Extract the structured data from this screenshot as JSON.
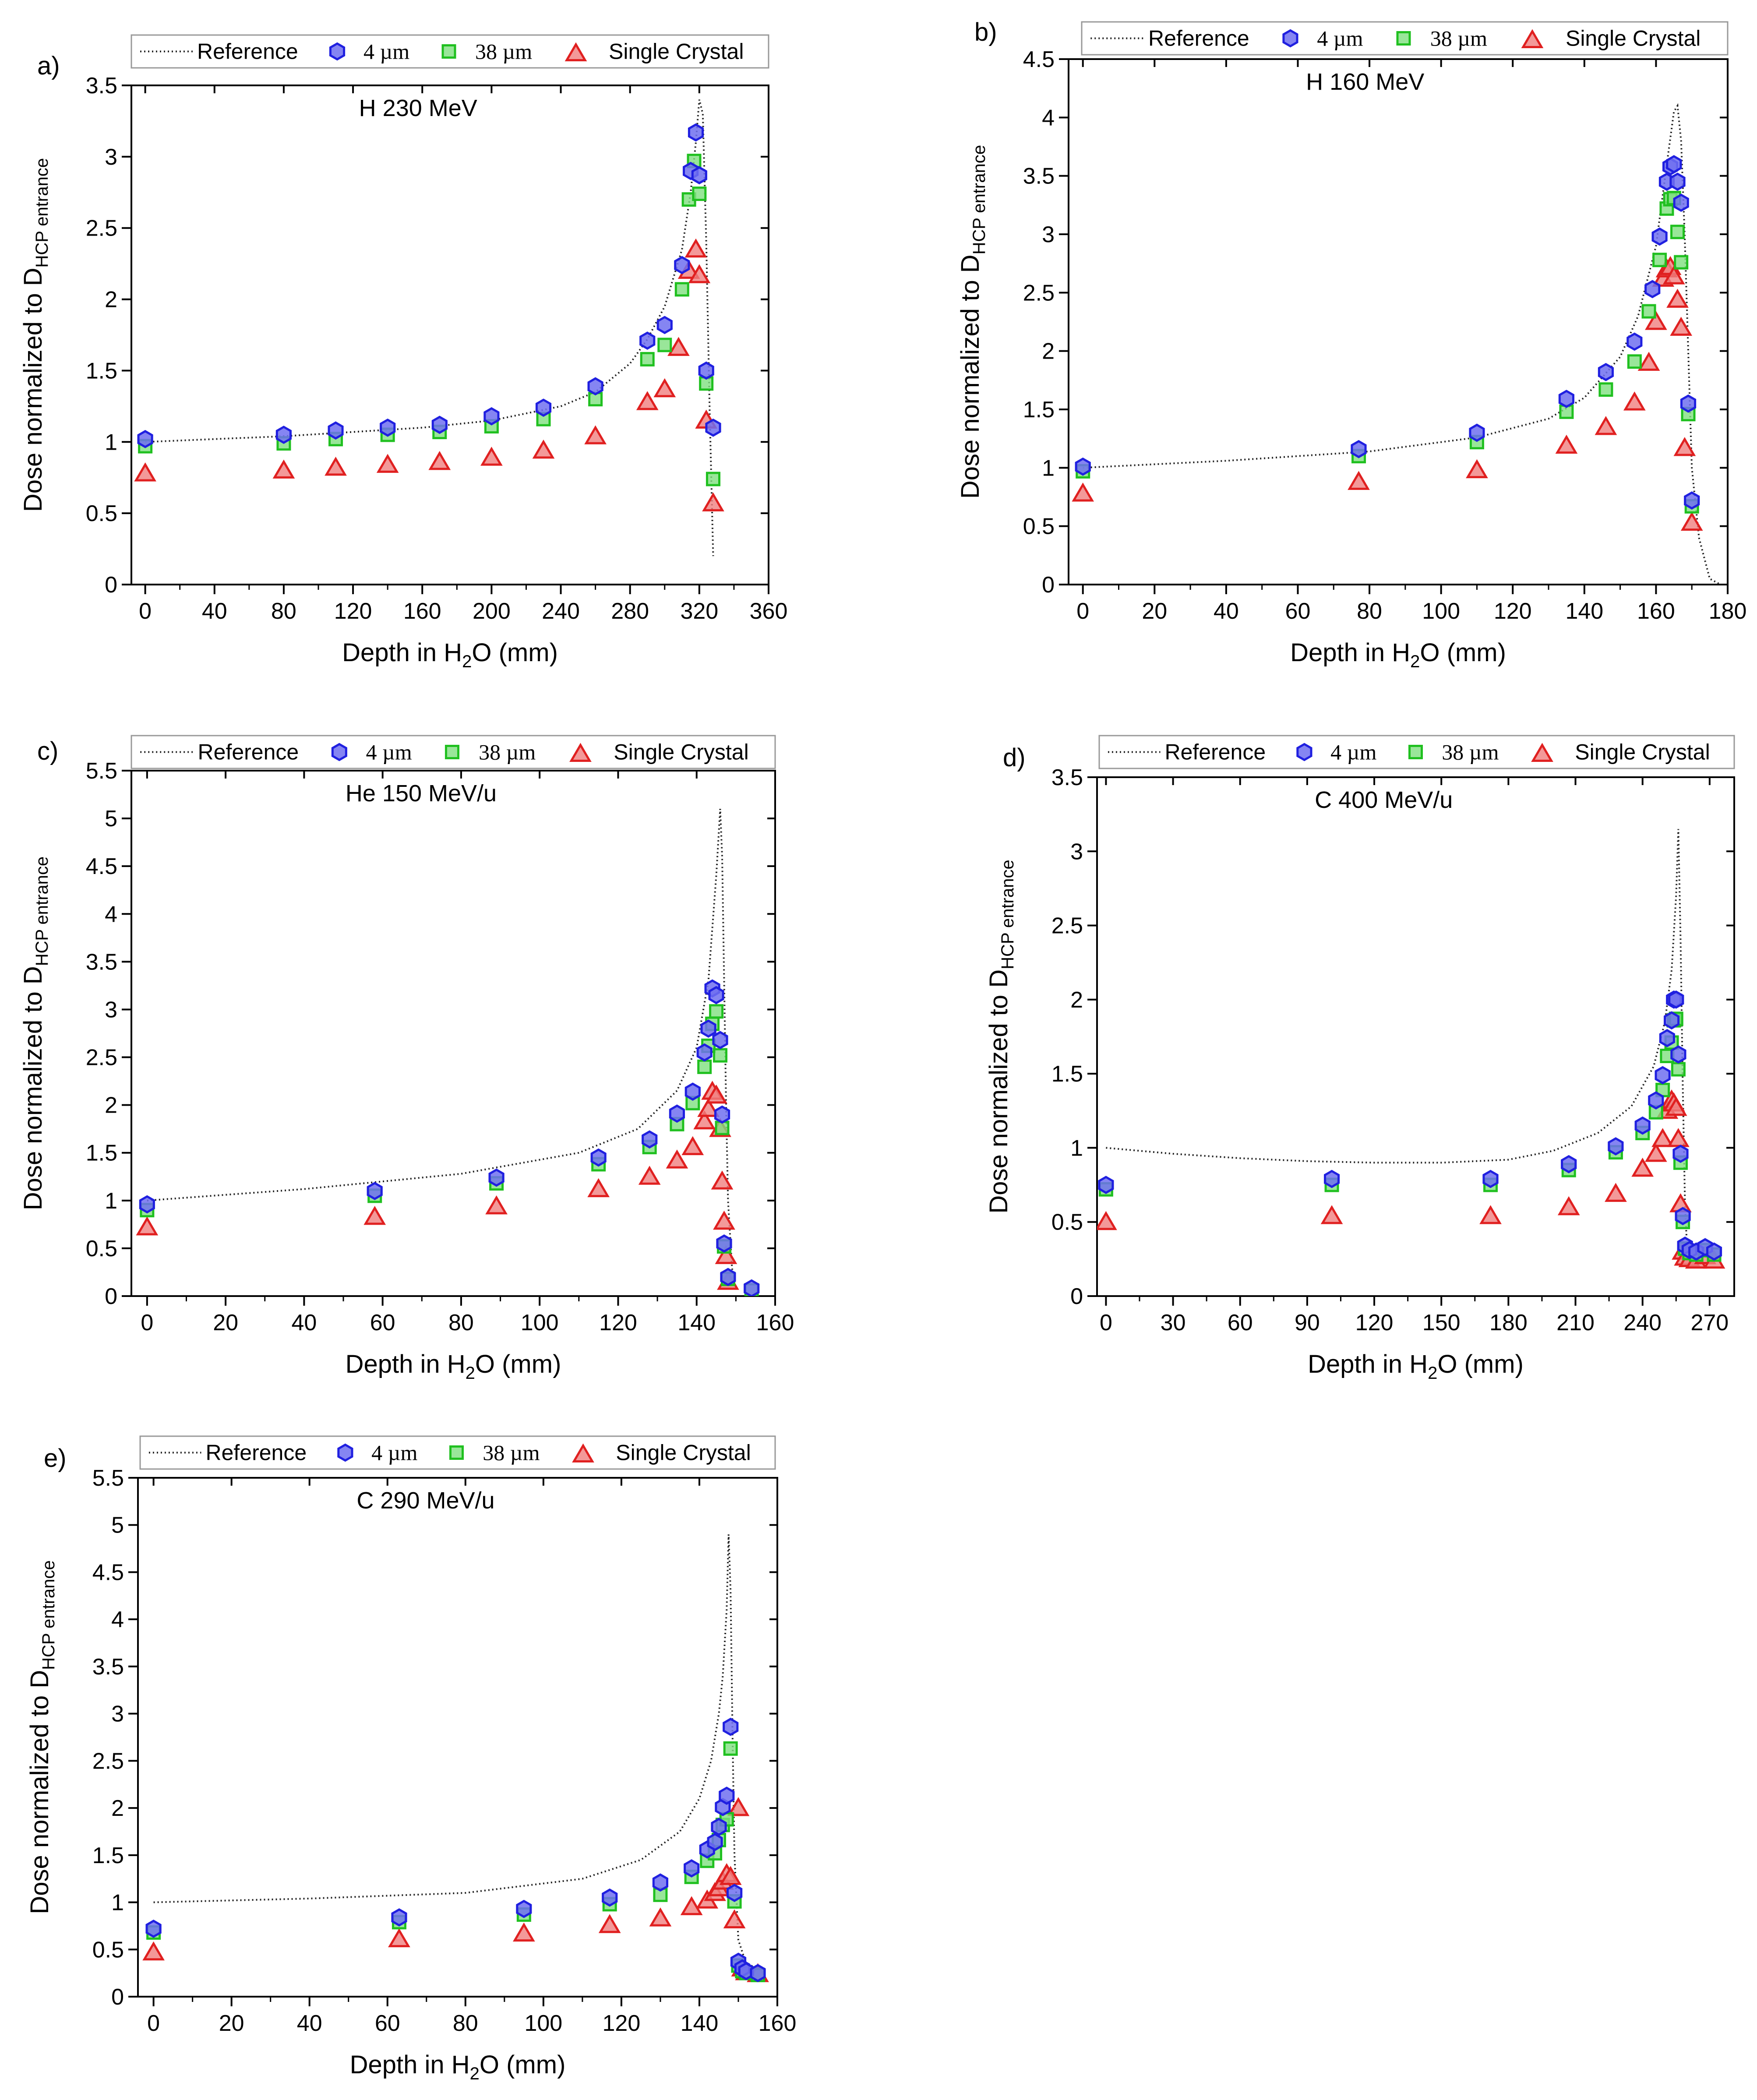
{
  "legend": {
    "reference": "Reference",
    "d4": "4 µm",
    "d38": "38 µm",
    "single": "Single Crystal"
  },
  "colors": {
    "reference": "#222222",
    "blue_fill": "#7070f0",
    "blue_edge": "#2020e0",
    "green_fill": "#80e080",
    "green_edge": "#20c020",
    "red_fill": "#f08080",
    "red_edge": "#e02020"
  },
  "chart_data": [
    {
      "type": "scatter",
      "panel": "a)",
      "title": "H 230 MeV",
      "xlabel": "Depth in H2O (mm)",
      "ylabel": "Dose normalized to DHCP entrance",
      "xlim": [
        -8,
        360
      ],
      "ylim": [
        0,
        3.5
      ],
      "xticks": [
        0,
        40,
        80,
        120,
        160,
        200,
        240,
        280,
        320,
        360
      ],
      "yticks": [
        0,
        0.5,
        1,
        1.5,
        2,
        2.5,
        3,
        3.5
      ],
      "reference": {
        "x": [
          0,
          40,
          80,
          120,
          160,
          200,
          240,
          260,
          280,
          290,
          300,
          310,
          315,
          318,
          320,
          322,
          324,
          326,
          328
        ],
        "y": [
          1.0,
          1.02,
          1.04,
          1.07,
          1.1,
          1.15,
          1.25,
          1.35,
          1.55,
          1.72,
          1.95,
          2.35,
          2.75,
          3.1,
          3.4,
          3.3,
          2.4,
          1.2,
          0.2
        ]
      },
      "series": [
        {
          "name": "4 µm",
          "x": [
            0,
            80,
            110,
            140,
            170,
            200,
            230,
            260,
            290,
            300,
            310,
            315,
            318,
            320,
            324,
            328
          ],
          "y": [
            1.02,
            1.05,
            1.08,
            1.1,
            1.12,
            1.18,
            1.24,
            1.39,
            1.71,
            1.82,
            2.24,
            2.9,
            3.17,
            2.87,
            1.5,
            1.1
          ]
        },
        {
          "name": "38 µm",
          "x": [
            0,
            80,
            110,
            140,
            170,
            200,
            230,
            260,
            290,
            300,
            310,
            314,
            317,
            320,
            324,
            328
          ],
          "y": [
            0.97,
            0.99,
            1.02,
            1.05,
            1.07,
            1.11,
            1.16,
            1.3,
            1.58,
            1.68,
            2.07,
            2.7,
            2.97,
            2.74,
            1.41,
            0.74
          ]
        },
        {
          "name": "Single Crystal",
          "x": [
            0,
            80,
            110,
            140,
            170,
            200,
            230,
            260,
            290,
            300,
            308,
            314,
            318,
            320,
            324,
            328
          ],
          "y": [
            0.78,
            0.8,
            0.82,
            0.84,
            0.86,
            0.89,
            0.94,
            1.04,
            1.28,
            1.37,
            1.66,
            2.2,
            2.35,
            2.17,
            1.15,
            0.57
          ]
        }
      ]
    },
    {
      "type": "scatter",
      "panel": "b)",
      "title": "H 160 MeV",
      "xlabel": "Depth in H2O (mm)",
      "ylabel": "Dose normalized to DHCP entrance",
      "xlim": [
        -4,
        180
      ],
      "ylim": [
        0,
        4.5
      ],
      "xticks": [
        0,
        20,
        40,
        60,
        80,
        100,
        120,
        140,
        160,
        180
      ],
      "yticks": [
        0,
        0.5,
        1,
        1.5,
        2,
        2.5,
        3,
        3.5,
        4,
        4.5
      ],
      "reference": {
        "x": [
          0,
          40,
          80,
          110,
          130,
          140,
          150,
          155,
          160,
          163,
          165,
          166,
          167,
          168,
          169,
          170,
          172,
          175,
          178
        ],
        "y": [
          1.0,
          1.06,
          1.14,
          1.26,
          1.42,
          1.6,
          1.95,
          2.3,
          2.9,
          3.6,
          4.05,
          4.1,
          3.8,
          3.0,
          2.0,
          1.0,
          0.4,
          0.05,
          0.0
        ]
      },
      "series": [
        {
          "name": "4 µm",
          "x": [
            0,
            77,
            110,
            135,
            146,
            154,
            159,
            161,
            163,
            164,
            165,
            166,
            167,
            169,
            170
          ],
          "y": [
            1.01,
            1.16,
            1.3,
            1.59,
            1.82,
            2.08,
            2.53,
            2.98,
            3.45,
            3.58,
            3.6,
            3.45,
            3.27,
            1.55,
            0.72
          ]
        },
        {
          "name": "38 µm",
          "x": [
            0,
            77,
            110,
            135,
            146,
            154,
            158,
            161,
            163,
            164,
            165,
            166,
            167,
            169,
            170
          ],
          "y": [
            0.97,
            1.1,
            1.22,
            1.48,
            1.67,
            1.91,
            2.34,
            2.78,
            3.22,
            3.3,
            3.31,
            3.02,
            2.76,
            1.46,
            0.67
          ]
        },
        {
          "name": "Single Crystal",
          "x": [
            0,
            77,
            110,
            135,
            146,
            154,
            158,
            160,
            162,
            163,
            164,
            165,
            166,
            167,
            168,
            170
          ],
          "y": [
            0.78,
            0.88,
            0.98,
            1.19,
            1.35,
            1.56,
            1.9,
            2.25,
            2.62,
            2.7,
            2.72,
            2.64,
            2.44,
            2.2,
            1.17,
            0.53
          ]
        }
      ]
    },
    {
      "type": "scatter",
      "panel": "c)",
      "title": "He 150 MeV/u",
      "xlabel": "Depth in H2O (mm)",
      "ylabel": "Dose normalized to DHCP entrance",
      "xlim": [
        -4,
        160
      ],
      "ylim": [
        0,
        5.5
      ],
      "xticks": [
        0,
        20,
        40,
        60,
        80,
        100,
        120,
        140,
        160
      ],
      "yticks": [
        0,
        0.5,
        1,
        1.5,
        2,
        2.5,
        3,
        3.5,
        4,
        4.5,
        5,
        5.5
      ],
      "reference": {
        "x": [
          0,
          40,
          80,
          110,
          125,
          135,
          140,
          143,
          145,
          146,
          146.5,
          147,
          147.5,
          148,
          149,
          150
        ],
        "y": [
          1.0,
          1.12,
          1.28,
          1.5,
          1.75,
          2.15,
          2.6,
          3.3,
          4.4,
          5.1,
          4.6,
          3.3,
          2.0,
          1.0,
          0.3,
          0.05
        ]
      },
      "series": [
        {
          "name": "4 µm",
          "x": [
            0,
            58,
            89,
            115,
            128,
            135,
            139,
            142,
            143,
            144,
            145,
            146,
            146.5,
            147,
            148,
            154
          ],
          "y": [
            0.96,
            1.1,
            1.24,
            1.45,
            1.64,
            1.91,
            2.14,
            2.55,
            2.8,
            3.22,
            3.15,
            2.68,
            1.9,
            0.55,
            0.2,
            0.08
          ]
        },
        {
          "name": "38 µm",
          "x": [
            0,
            58,
            89,
            115,
            128,
            135,
            139,
            142,
            143,
            144,
            145,
            146,
            146.5,
            147,
            148,
            154
          ],
          "y": [
            0.9,
            1.05,
            1.18,
            1.38,
            1.56,
            1.8,
            2.02,
            2.4,
            2.62,
            2.85,
            2.98,
            2.52,
            1.76,
            0.52,
            0.18,
            0.06
          ]
        },
        {
          "name": "Single Crystal",
          "x": [
            0,
            58,
            89,
            115,
            128,
            135,
            139,
            142,
            143,
            144,
            145,
            146,
            146.5,
            147,
            147.5,
            148
          ],
          "y": [
            0.72,
            0.83,
            0.94,
            1.12,
            1.25,
            1.42,
            1.56,
            1.83,
            1.96,
            2.14,
            2.1,
            1.75,
            1.2,
            0.78,
            0.42,
            0.15
          ]
        }
      ]
    },
    {
      "type": "scatter",
      "panel": "d)",
      "title": "C 400 MeV/u",
      "xlabel": "Depth in H2O (mm)",
      "ylabel": "Dose normalized to DHCP entrance",
      "xlim": [
        -4,
        281
      ],
      "ylim": [
        0,
        3.5
      ],
      "xticks": [
        0,
        30,
        60,
        90,
        120,
        150,
        180,
        210,
        240,
        270
      ],
      "yticks": [
        0,
        0.5,
        1,
        1.5,
        2,
        2.5,
        3,
        3.5
      ],
      "reference": {
        "x": [
          0,
          30,
          60,
          90,
          120,
          150,
          180,
          200,
          220,
          235,
          245,
          250,
          253,
          255,
          256,
          257,
          258,
          259,
          260,
          262,
          265
        ],
        "y": [
          1.0,
          0.96,
          0.93,
          0.91,
          0.9,
          0.9,
          0.92,
          0.98,
          1.1,
          1.28,
          1.55,
          1.85,
          2.2,
          2.7,
          3.15,
          2.4,
          1.4,
          0.6,
          0.3,
          0.25,
          0.22
        ]
      },
      "series": [
        {
          "name": "4 µm",
          "x": [
            0,
            101,
            172,
            207,
            228,
            240,
            246,
            249,
            251,
            253,
            254,
            255,
            256,
            257,
            258,
            259,
            261,
            264,
            268,
            272
          ],
          "y": [
            0.75,
            0.79,
            0.79,
            0.89,
            1.01,
            1.15,
            1.32,
            1.49,
            1.74,
            1.86,
            2.0,
            2.0,
            1.63,
            0.96,
            0.54,
            0.34,
            0.31,
            0.3,
            0.33,
            0.3
          ]
        },
        {
          "name": "38 µm",
          "x": [
            0,
            101,
            172,
            207,
            228,
            240,
            246,
            249,
            251,
            253,
            254,
            255,
            256,
            257,
            258,
            259,
            261,
            264,
            268,
            272
          ],
          "y": [
            0.72,
            0.75,
            0.75,
            0.85,
            0.97,
            1.1,
            1.24,
            1.39,
            1.62,
            1.71,
            1.86,
            1.87,
            1.53,
            0.9,
            0.5,
            0.32,
            0.29,
            0.28,
            0.31,
            0.28
          ]
        },
        {
          "name": "Single Crystal",
          "x": [
            0,
            101,
            172,
            207,
            228,
            240,
            246,
            249,
            251,
            253,
            254,
            255,
            256,
            257,
            258,
            259,
            261,
            264,
            268,
            272
          ],
          "y": [
            0.5,
            0.54,
            0.54,
            0.6,
            0.69,
            0.86,
            0.96,
            1.06,
            1.25,
            1.32,
            1.3,
            1.27,
            1.06,
            0.62,
            0.3,
            0.26,
            0.25,
            0.24,
            0.27,
            0.24
          ]
        }
      ]
    },
    {
      "type": "scatter",
      "panel": "e)",
      "title": "C 290 MeV/u",
      "xlabel": "Depth in H2O (mm)",
      "ylabel": "Dose normalized to DHCP entrance",
      "xlim": [
        -4,
        160
      ],
      "ylim": [
        0,
        5.5
      ],
      "xticks": [
        0,
        20,
        40,
        60,
        80,
        100,
        120,
        140,
        160
      ],
      "yticks": [
        0,
        0.5,
        1,
        1.5,
        2,
        2.5,
        3,
        3.5,
        4,
        4.5,
        5,
        5.5
      ],
      "reference": {
        "x": [
          0,
          40,
          80,
          110,
          125,
          135,
          140,
          143,
          145,
          146,
          147,
          147.5,
          148,
          148.5,
          149,
          150,
          152,
          155
        ],
        "y": [
          1.0,
          1.04,
          1.1,
          1.25,
          1.45,
          1.75,
          2.1,
          2.5,
          3.0,
          3.4,
          4.1,
          4.9,
          4.3,
          2.8,
          1.5,
          0.6,
          0.35,
          0.3
        ]
      },
      "series": [
        {
          "name": "4 µm",
          "x": [
            0,
            63,
            95,
            117,
            130,
            138,
            142,
            144,
            145,
            146,
            147,
            148,
            149,
            150,
            151,
            152,
            155
          ],
          "y": [
            0.72,
            0.84,
            0.93,
            1.05,
            1.21,
            1.36,
            1.56,
            1.64,
            1.8,
            2.01,
            2.13,
            2.86,
            1.1,
            0.37,
            0.3,
            0.27,
            0.25
          ]
        },
        {
          "name": "38 µm",
          "x": [
            0,
            63,
            95,
            117,
            130,
            138,
            142,
            144,
            145,
            146,
            147,
            148,
            149,
            150,
            151,
            152,
            155
          ],
          "y": [
            0.68,
            0.79,
            0.87,
            0.98,
            1.08,
            1.27,
            1.44,
            1.52,
            1.66,
            1.82,
            1.88,
            2.63,
            1.01,
            0.33,
            0.27,
            0.25,
            0.23
          ]
        },
        {
          "name": "Single Crystal",
          "x": [
            0,
            63,
            95,
            117,
            130,
            138,
            142,
            144,
            145,
            146,
            147,
            148,
            149,
            150,
            151,
            152,
            155
          ],
          "y": [
            0.47,
            0.61,
            0.67,
            0.76,
            0.83,
            0.95,
            1.02,
            1.1,
            1.15,
            1.22,
            1.3,
            1.27,
            0.81,
            2.0,
            0.3,
            0.26,
            0.24
          ]
        }
      ]
    }
  ]
}
